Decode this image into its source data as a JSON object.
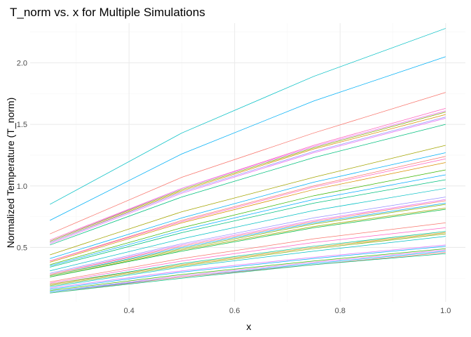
{
  "chart_data": {
    "type": "line",
    "title": "T_norm vs. x for Multiple Simulations",
    "xlabel": "x",
    "ylabel": "Normalized Temperature (T_norm)",
    "x": [
      0.25,
      0.5,
      0.75,
      1.0
    ],
    "xlim": [
      0.2125,
      1.0375
    ],
    "ylim": [
      0.0575,
      2.3225
    ],
    "xticks": [
      "0.4",
      "0.6",
      "0.8",
      "1.0"
    ],
    "xtick_values": [
      0.4,
      0.6,
      0.8,
      1.0
    ],
    "yticks": [
      "0.5",
      "1.0",
      "1.5",
      "2.0"
    ],
    "ytick_values": [
      0.5,
      1.0,
      1.5,
      2.0
    ],
    "grid": true,
    "legend": "none",
    "series": [
      {
        "color": "#00BFC4",
        "values": [
          0.85,
          1.43,
          1.89,
          2.28
        ]
      },
      {
        "color": "#00B0F6",
        "values": [
          0.72,
          1.26,
          1.69,
          2.05
        ]
      },
      {
        "color": "#F8766D",
        "values": [
          0.61,
          1.07,
          1.43,
          1.76
        ]
      },
      {
        "color": "#FF62BC",
        "values": [
          0.56,
          0.98,
          1.33,
          1.63
        ]
      },
      {
        "color": "#E76BF3",
        "values": [
          0.55,
          0.98,
          1.32,
          1.61
        ]
      },
      {
        "color": "#7CAE00",
        "values": [
          0.55,
          0.97,
          1.31,
          1.6
        ]
      },
      {
        "color": "#D89000",
        "values": [
          0.54,
          0.96,
          1.3,
          1.58
        ]
      },
      {
        "color": "#9590FF",
        "values": [
          0.54,
          0.95,
          1.28,
          1.56
        ]
      },
      {
        "color": "#E76BF3",
        "values": [
          0.53,
          0.94,
          1.27,
          1.55
        ]
      },
      {
        "color": "#00BF7D",
        "values": [
          0.52,
          0.91,
          1.23,
          1.5
        ]
      },
      {
        "color": "#A3A500",
        "values": [
          0.44,
          0.79,
          1.07,
          1.33
        ]
      },
      {
        "color": "#00B0F6",
        "values": [
          0.41,
          0.74,
          1.03,
          1.27
        ]
      },
      {
        "color": "#F8766D",
        "values": [
          0.39,
          0.72,
          1.0,
          1.24
        ]
      },
      {
        "color": "#FF62BC",
        "values": [
          0.39,
          0.71,
          0.99,
          1.22
        ]
      },
      {
        "color": "#D89000",
        "values": [
          0.38,
          0.7,
          0.97,
          1.19
        ]
      },
      {
        "color": "#39B600",
        "values": [
          0.36,
          0.66,
          0.92,
          1.13
        ]
      },
      {
        "color": "#00ABFD",
        "values": [
          0.35,
          0.64,
          0.89,
          1.09
        ]
      },
      {
        "color": "#00BF7D",
        "values": [
          0.34,
          0.62,
          0.86,
          1.05
        ]
      },
      {
        "color": "#00BFC4",
        "values": [
          0.31,
          0.57,
          0.8,
          0.98
        ]
      },
      {
        "color": "#9590FF",
        "values": [
          0.29,
          0.53,
          0.74,
          0.91
        ]
      },
      {
        "color": "#E76BF3",
        "values": [
          0.28,
          0.52,
          0.72,
          0.89
        ]
      },
      {
        "color": "#F8766D",
        "values": [
          0.28,
          0.51,
          0.71,
          0.88
        ]
      },
      {
        "color": "#00A9FF",
        "values": [
          0.27,
          0.5,
          0.7,
          0.86
        ]
      },
      {
        "color": "#7CAE00",
        "values": [
          0.27,
          0.49,
          0.69,
          0.85
        ]
      },
      {
        "color": "#A3A500",
        "values": [
          0.26,
          0.48,
          0.67,
          0.82
        ]
      },
      {
        "color": "#00BA38",
        "values": [
          0.26,
          0.47,
          0.66,
          0.81
        ]
      },
      {
        "color": "#F8766D",
        "values": [
          0.22,
          0.41,
          0.57,
          0.7
        ]
      },
      {
        "color": "#FF61C3",
        "values": [
          0.21,
          0.39,
          0.54,
          0.66
        ]
      },
      {
        "color": "#00C08B",
        "values": [
          0.2,
          0.37,
          0.51,
          0.63
        ]
      },
      {
        "color": "#D89000",
        "values": [
          0.2,
          0.36,
          0.5,
          0.62
        ]
      },
      {
        "color": "#7CAE00",
        "values": [
          0.19,
          0.35,
          0.49,
          0.61
        ]
      },
      {
        "color": "#00BFC4",
        "values": [
          0.18,
          0.34,
          0.47,
          0.59
        ]
      },
      {
        "color": "#DB72FB",
        "values": [
          0.17,
          0.31,
          0.42,
          0.52
        ]
      },
      {
        "color": "#00A9FF",
        "values": [
          0.16,
          0.3,
          0.41,
          0.51
        ]
      },
      {
        "color": "#39B600",
        "values": [
          0.15,
          0.28,
          0.39,
          0.49
        ]
      },
      {
        "color": "#E76BF3",
        "values": [
          0.14,
          0.27,
          0.38,
          0.48
        ]
      },
      {
        "color": "#00B0F6",
        "values": [
          0.14,
          0.26,
          0.37,
          0.47
        ]
      },
      {
        "color": "#F8766D",
        "values": [
          0.13,
          0.26,
          0.36,
          0.46
        ]
      },
      {
        "color": "#00BF7D",
        "values": [
          0.13,
          0.25,
          0.36,
          0.45
        ]
      }
    ]
  }
}
